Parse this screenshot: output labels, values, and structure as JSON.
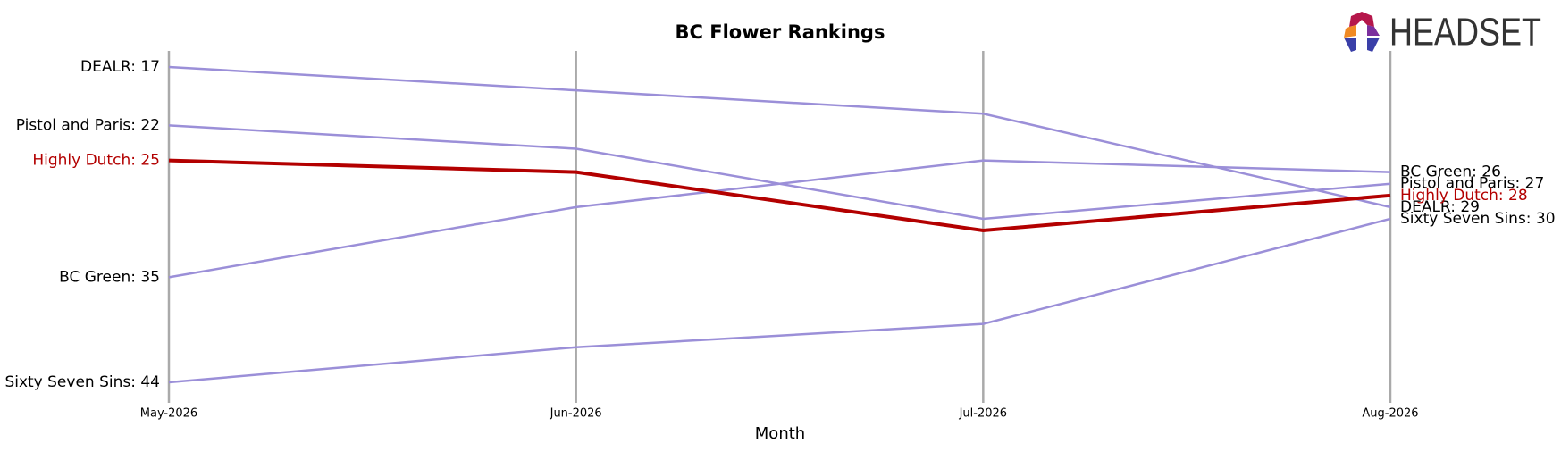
{
  "logo": {
    "text": "HEADSET"
  },
  "chart_data": {
    "type": "bump",
    "title": "BC Flower Rankings",
    "x_label": "Month",
    "categories": [
      "May-2026",
      "Jun-2026",
      "Jul-2026",
      "Aug-2026"
    ],
    "ylim": [
      44,
      17
    ],
    "series": [
      {
        "name": "DEALR",
        "color": "#9b8fd8",
        "values": [
          17,
          19,
          21,
          29
        ],
        "value_labels": [
          "DEALR: 17",
          null,
          null,
          "DEALR: 29"
        ]
      },
      {
        "name": "Pistol and Paris",
        "color": "#9b8fd8",
        "values": [
          22,
          24,
          30,
          27
        ],
        "value_labels": [
          "Pistol and Paris: 22",
          null,
          null,
          "Pistol and Paris: 27"
        ]
      },
      {
        "name": "Highly Dutch",
        "color": "#b30000",
        "highlighted": true,
        "values": [
          25,
          26,
          31,
          28
        ],
        "value_labels": [
          "Highly Dutch: 25",
          null,
          null,
          "Highly Dutch: 28"
        ]
      },
      {
        "name": "BC Green",
        "color": "#9b8fd8",
        "values": [
          35,
          29,
          25,
          26
        ],
        "value_labels": [
          "BC Green: 35",
          null,
          null,
          "BC Green: 26"
        ]
      },
      {
        "name": "Sixty Seven Sins",
        "color": "#9b8fd8",
        "values": [
          44,
          41,
          39,
          30
        ],
        "value_labels": [
          "Sixty Seven Sins: 44",
          null,
          null,
          "Sixty Seven Sins: 30"
        ]
      }
    ]
  }
}
